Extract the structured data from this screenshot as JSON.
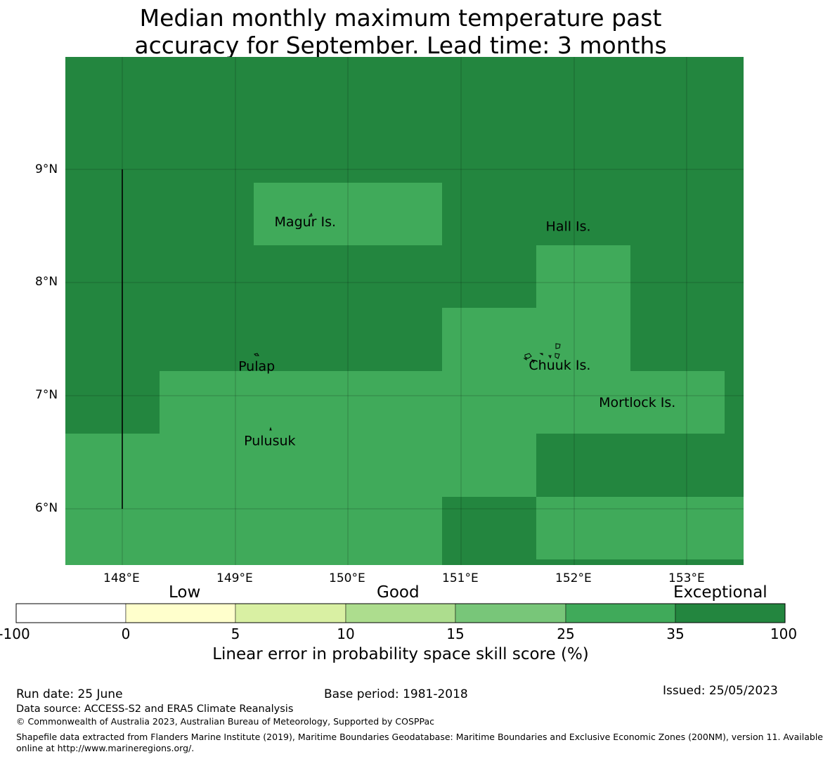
{
  "title_lines": [
    "Median monthly maximum temperature past",
    "accuracy for September. Lead time: 3 months"
  ],
  "map": {
    "lon_ticks": [
      "148°E",
      "149°E",
      "150°E",
      "151°E",
      "152°E",
      "153°E"
    ],
    "lat_ticks": [
      "9°N",
      "8°N",
      "7°N",
      "6°N"
    ],
    "extent": {
      "lon": [
        147.5,
        153.5
      ],
      "lat": [
        5.5,
        10.0
      ]
    },
    "colors": {
      "exceptional": "#23863f",
      "good_high": "#40aa5a",
      "gridline": "#000000"
    },
    "labels": [
      {
        "name": "Magur Is.",
        "lon": 149.35,
        "lat": 8.5
      },
      {
        "name": "Hall Is.",
        "lon": 151.75,
        "lat": 8.46
      },
      {
        "name": "Pulap",
        "lon": 149.03,
        "lat": 7.22
      },
      {
        "name": "Chuuk Is.",
        "lon": 151.6,
        "lat": 7.23
      },
      {
        "name": "Mortlock Is.",
        "lon": 152.22,
        "lat": 6.9
      },
      {
        "name": "Pulusuk",
        "lon": 149.08,
        "lat": 6.56
      }
    ]
  },
  "legend": {
    "categories": [
      "Low",
      "Good",
      "Exceptional"
    ],
    "ticks": [
      "-100",
      "0",
      "5",
      "10",
      "15",
      "25",
      "35",
      "100"
    ],
    "colors": [
      "#ffffff",
      "#ffffcc",
      "#d9f0a3",
      "#addd8e",
      "#78c679",
      "#40aa5a",
      "#23863f"
    ],
    "title": "Linear error in probability space skill score (%)"
  },
  "footer": {
    "run_date": "Run date: 25 June",
    "base_period": "Base period: 1981-2018",
    "issued": "Issued: 25/05/2023",
    "data_source": "Data source: ACCESS-S2 and ERA5 Climate Reanalysis",
    "copyright": "© Commonwealth of Australia 2023, Australian Bureau of Meteorology, Supported by COSPPac",
    "shapefile_line1": "Shapefile data extracted from Flanders Marine Institute (2019), Maritime Boundaries Geodatabase: Maritime Boundaries and Exclusive Economic Zones (200NM), version 11. Available",
    "shapefile_line2": "online at http://www.marineregions.org/."
  }
}
